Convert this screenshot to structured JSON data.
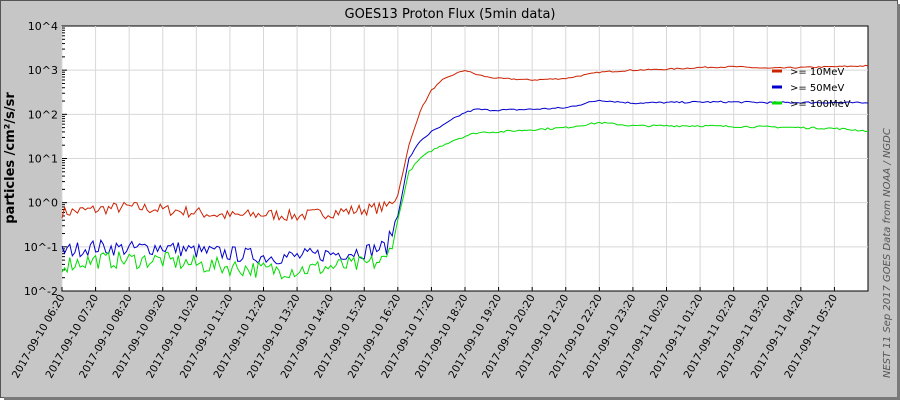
{
  "chart_data": {
    "type": "line",
    "title": "GOES13 Proton Flux (5min data)",
    "ylabel": "particles /cm²/s/sr",
    "yscale": "log",
    "ylim": [
      0.01,
      10000
    ],
    "y_tick_labels": [
      "10^4",
      "10^3",
      "10^2",
      "10^1",
      "10^0",
      "10^-1",
      "10^-2"
    ],
    "x_tick_labels": [
      "2017-09-10 06:20",
      "2017-09-10 07:20",
      "2017-09-10 08:20",
      "2017-09-10 09:20",
      "2017-09-10 10:20",
      "2017-09-10 11:20",
      "2017-09-10 12:20",
      "2017-09-10 13:20",
      "2017-09-10 14:20",
      "2017-09-10 15:20",
      "2017-09-10 16:20",
      "2017-09-10 17:20",
      "2017-09-10 18:20",
      "2017-09-10 19:20",
      "2017-09-10 20:20",
      "2017-09-10 21:20",
      "2017-09-10 22:20",
      "2017-09-10 23:20",
      "2017-09-11 00:20",
      "2017-09-11 01:20",
      "2017-09-11 02:20",
      "2017-09-11 03:20",
      "2017-09-11 04:20",
      "2017-09-11 05:20"
    ],
    "x_range": [
      "2017-09-10 06:20",
      "2017-09-11 06:20"
    ],
    "grid": true,
    "legend_position": "top-right",
    "side_note": "NEST  11 Sep 2017    GOES Data from NOAA / NGDC",
    "series": [
      {
        "name": ">= 10MeV",
        "color": "#cc2200",
        "x": [
          "2017-09-10 06:20",
          "2017-09-10 07:20",
          "2017-09-10 08:20",
          "2017-09-10 09:20",
          "2017-09-10 10:20",
          "2017-09-10 11:20",
          "2017-09-10 12:20",
          "2017-09-10 13:20",
          "2017-09-10 14:20",
          "2017-09-10 15:20",
          "2017-09-10 16:00",
          "2017-09-10 16:20",
          "2017-09-10 16:40",
          "2017-09-10 17:00",
          "2017-09-10 17:20",
          "2017-09-10 17:40",
          "2017-09-10 18:00",
          "2017-09-10 18:20",
          "2017-09-10 18:40",
          "2017-09-10 19:00",
          "2017-09-10 19:20",
          "2017-09-10 20:20",
          "2017-09-10 21:20",
          "2017-09-10 22:20",
          "2017-09-10 23:20",
          "2017-09-11 00:20",
          "2017-09-11 01:20",
          "2017-09-11 02:20",
          "2017-09-11 03:20",
          "2017-09-11 04:20",
          "2017-09-11 05:20",
          "2017-09-11 06:20"
        ],
        "values": [
          0.6,
          0.7,
          0.8,
          0.7,
          0.6,
          0.5,
          0.55,
          0.5,
          0.6,
          0.7,
          0.8,
          1.5,
          20,
          120,
          350,
          600,
          800,
          1000,
          800,
          700,
          650,
          600,
          650,
          900,
          1000,
          1050,
          1150,
          1200,
          1100,
          1150,
          1200,
          1250
        ]
      },
      {
        "name": ">= 50MeV",
        "color": "#0000cc",
        "x": [
          "2017-09-10 06:20",
          "2017-09-10 07:20",
          "2017-09-10 08:20",
          "2017-09-10 09:20",
          "2017-09-10 10:20",
          "2017-09-10 11:20",
          "2017-09-10 12:20",
          "2017-09-10 13:20",
          "2017-09-10 14:20",
          "2017-09-10 15:20",
          "2017-09-10 16:00",
          "2017-09-10 16:20",
          "2017-09-10 16:40",
          "2017-09-10 17:00",
          "2017-09-10 17:20",
          "2017-09-10 17:40",
          "2017-09-10 18:00",
          "2017-09-10 18:20",
          "2017-09-10 18:40",
          "2017-09-10 19:00",
          "2017-09-10 19:20",
          "2017-09-10 20:20",
          "2017-09-10 21:20",
          "2017-09-10 22:20",
          "2017-09-10 23:20",
          "2017-09-11 00:20",
          "2017-09-11 01:20",
          "2017-09-11 02:20",
          "2017-09-11 03:20",
          "2017-09-11 04:20",
          "2017-09-11 05:20",
          "2017-09-11 06:20"
        ],
        "values": [
          0.08,
          0.1,
          0.09,
          0.1,
          0.08,
          0.07,
          0.06,
          0.06,
          0.07,
          0.08,
          0.1,
          0.5,
          10,
          25,
          40,
          55,
          80,
          110,
          130,
          125,
          125,
          130,
          140,
          210,
          180,
          185,
          190,
          190,
          185,
          185,
          185,
          180
        ]
      },
      {
        "name": ">= 100MeV",
        "color": "#00dd00",
        "x": [
          "2017-09-10 06:20",
          "2017-09-10 07:20",
          "2017-09-10 08:20",
          "2017-09-10 09:20",
          "2017-09-10 10:20",
          "2017-09-10 11:20",
          "2017-09-10 12:20",
          "2017-09-10 13:20",
          "2017-09-10 14:20",
          "2017-09-10 15:20",
          "2017-09-10 16:00",
          "2017-09-10 16:20",
          "2017-09-10 16:40",
          "2017-09-10 17:00",
          "2017-09-10 17:20",
          "2017-09-10 17:40",
          "2017-09-10 18:00",
          "2017-09-10 18:20",
          "2017-09-10 18:40",
          "2017-09-10 19:00",
          "2017-09-10 19:20",
          "2017-09-10 20:20",
          "2017-09-10 21:20",
          "2017-09-10 22:20",
          "2017-09-10 23:20",
          "2017-09-11 00:20",
          "2017-09-11 01:20",
          "2017-09-11 02:20",
          "2017-09-11 03:20",
          "2017-09-11 04:20",
          "2017-09-11 05:20",
          "2017-09-11 06:20"
        ],
        "values": [
          0.04,
          0.05,
          0.05,
          0.05,
          0.04,
          0.035,
          0.03,
          0.03,
          0.035,
          0.04,
          0.05,
          0.4,
          5,
          10,
          15,
          20,
          26,
          32,
          38,
          40,
          40,
          45,
          50,
          65,
          55,
          55,
          55,
          53,
          52,
          50,
          48,
          42
        ]
      }
    ]
  }
}
